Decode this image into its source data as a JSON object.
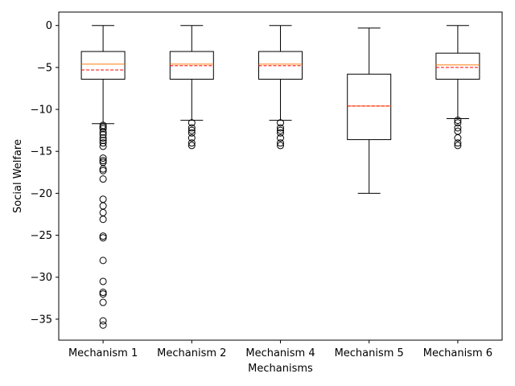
{
  "chart_data": {
    "type": "box",
    "title": "",
    "xlabel": "Mechanisms",
    "ylabel": "Social Welfare",
    "ylim": [
      -37.5,
      1.6
    ],
    "yticks": [
      0,
      -5,
      -10,
      -15,
      -20,
      -25,
      -30,
      -35
    ],
    "grid": false,
    "legend": "none",
    "colors": {
      "box": "#000000",
      "median": "#ff7f0e",
      "mean": "#ff0000",
      "outlier": "#000000"
    },
    "categories": [
      "Mechanism 1",
      "Mechanism 2",
      "Mechanism 4",
      "Mechanism 5",
      "Mechanism 6"
    ],
    "boxes": [
      {
        "name": "Mechanism 1",
        "whisker_high": 0,
        "q3": -3.1,
        "median": -4.6,
        "mean": -5.3,
        "q1": -6.4,
        "whisker_low": -11.7,
        "outliers": [
          -11.9,
          -12.1,
          -12.3,
          -12.7,
          -13.0,
          -13.4,
          -13.7,
          -14.0,
          -14.4,
          -15.8,
          -16.1,
          -16.3,
          -17.1,
          -17.3,
          -18.3,
          -20.7,
          -21.5,
          -22.3,
          -23.1,
          -25.1,
          -25.3,
          -28.0,
          -30.5,
          -31.8,
          -32.0,
          -33.0,
          -35.2,
          -35.7
        ]
      },
      {
        "name": "Mechanism 2",
        "whisker_high": 0,
        "q3": -3.1,
        "median": -4.6,
        "mean": -4.8,
        "q1": -6.4,
        "whisker_low": -11.3,
        "outliers": [
          -11.6,
          -12.2,
          -12.5,
          -12.8,
          -13.4,
          -14.0,
          -14.3
        ]
      },
      {
        "name": "Mechanism 4",
        "whisker_high": 0,
        "q3": -3.1,
        "median": -4.6,
        "mean": -4.8,
        "q1": -6.4,
        "whisker_low": -11.3,
        "outliers": [
          -11.6,
          -12.2,
          -12.5,
          -12.8,
          -13.4,
          -14.0,
          -14.3
        ]
      },
      {
        "name": "Mechanism 5",
        "whisker_high": -0.3,
        "q3": -5.8,
        "median": -9.6,
        "mean": -9.6,
        "q1": -13.6,
        "whisker_low": -20.0,
        "outliers": []
      },
      {
        "name": "Mechanism 6",
        "whisker_high": 0,
        "q3": -3.3,
        "median": -4.7,
        "mean": -5.0,
        "q1": -6.4,
        "whisker_low": -11.1,
        "outliers": [
          -11.3,
          -11.6,
          -12.2,
          -12.6,
          -13.4,
          -14.0,
          -14.3
        ]
      }
    ]
  }
}
